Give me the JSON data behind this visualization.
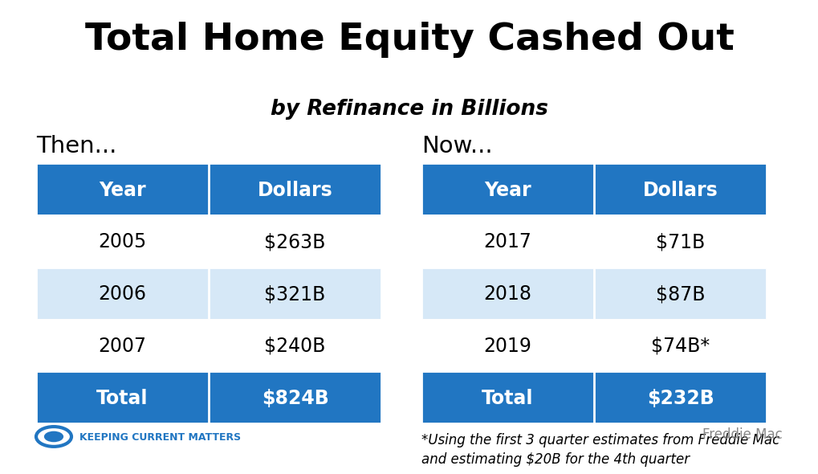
{
  "title": "Total Home Equity Cashed Out",
  "subtitle": "by Refinance in Billions",
  "then_label": "Then...",
  "now_label": "Now...",
  "then_headers": [
    "Year",
    "Dollars"
  ],
  "now_headers": [
    "Year",
    "Dollars"
  ],
  "then_rows": [
    [
      "2005",
      "$263B"
    ],
    [
      "2006",
      "$321B"
    ],
    [
      "2007",
      "$240B"
    ]
  ],
  "then_total": [
    "Total",
    "$824B"
  ],
  "now_rows": [
    [
      "2017",
      "$71B"
    ],
    [
      "2018",
      "$87B"
    ],
    [
      "2019",
      "$74B*"
    ]
  ],
  "now_total": [
    "Total",
    "$232B"
  ],
  "footnote_line1": "*Using the first 3 quarter estimates from Freddie Mac",
  "footnote_line2": "and estimating $20B for the 4th quarter",
  "source": "Freddie Mac",
  "header_bg": "#2176C2",
  "header_fg": "#FFFFFF",
  "total_bg": "#2176C2",
  "total_fg": "#FFFFFF",
  "alt_row_bg": "#D6E8F7",
  "white_bg": "#FFFFFF",
  "text_color": "#000000",
  "bg_color": "#FFFFFF",
  "title_fontsize": 34,
  "subtitle_fontsize": 19,
  "label_fontsize": 21,
  "header_fontsize": 17,
  "cell_fontsize": 17,
  "footnote_fontsize": 12,
  "source_fontsize": 12,
  "logo_text": "Keeping Current Matters",
  "logo_color": "#2176C2",
  "source_color": "#888888"
}
